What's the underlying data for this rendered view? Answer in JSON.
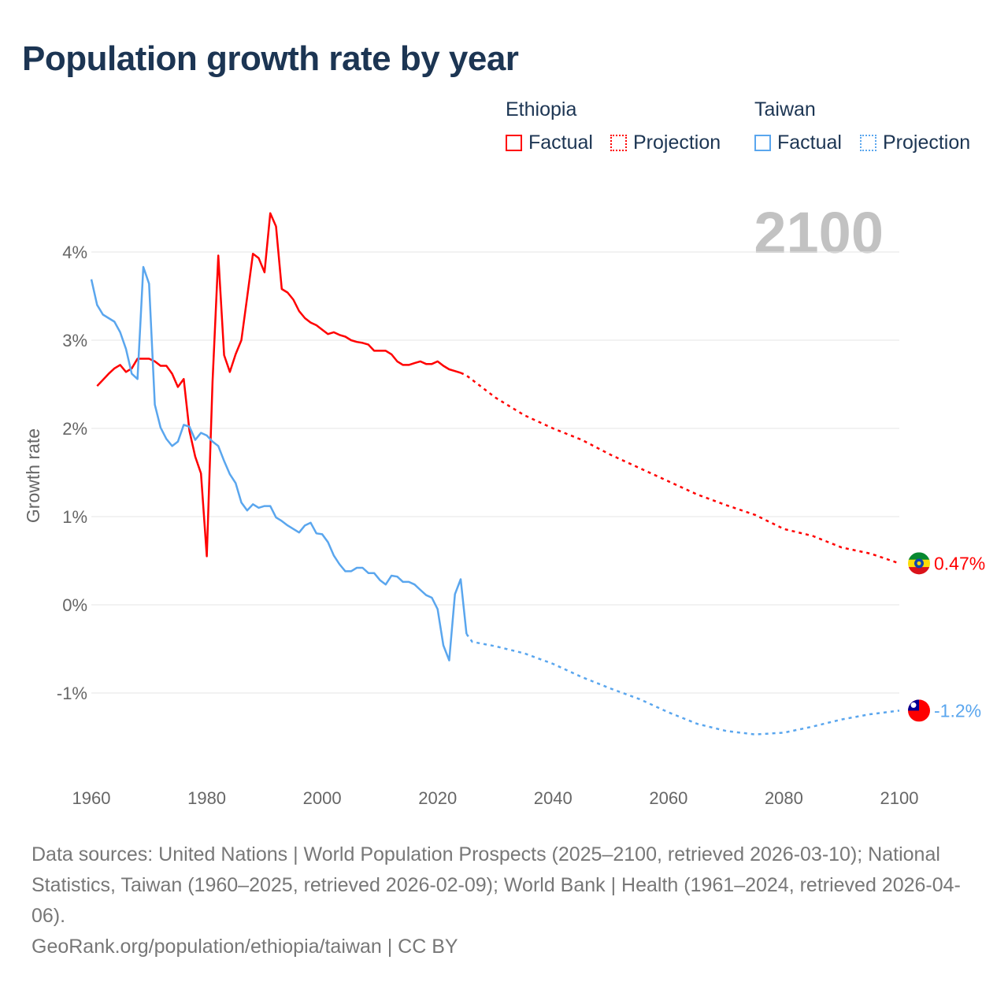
{
  "title": "Population growth rate by year",
  "legend": {
    "groups": [
      {
        "name": "Ethiopia",
        "factual": "Factual",
        "projection": "Projection",
        "color": "#ff0000"
      },
      {
        "name": "Taiwan",
        "factual": "Factual",
        "projection": "Projection",
        "color": "#5aa6ee"
      }
    ]
  },
  "year_watermark": "2100",
  "footer": {
    "sources": "Data sources: United Nations | World Population Prospects (2025–2100, retrieved 2026-03-10); National Statistics, Taiwan (1960–2025, retrieved 2026-02-09); World Bank | Health (1961–2024, retrieved 2026-04-06).",
    "credit": "GeoRank.org/population/ethiopia/taiwan | CC BY"
  },
  "chart_data": {
    "type": "line",
    "title": "Population growth rate by year",
    "xlabel": "",
    "ylabel": "Growth rate",
    "xlim": [
      1960,
      2100
    ],
    "ylim": [
      -2,
      4.6
    ],
    "x_ticks": [
      1960,
      1980,
      2000,
      2020,
      2040,
      2060,
      2080,
      2100
    ],
    "x_tick_labels": [
      "1960",
      "1980",
      "2000",
      "2020",
      "2040",
      "2060",
      "2080",
      "2100"
    ],
    "y_ticks": [
      -1,
      0,
      1,
      2,
      3,
      4
    ],
    "y_tick_labels": [
      "-1%",
      "0%",
      "1%",
      "2%",
      "3%",
      "4%"
    ],
    "grid": true,
    "legend_position": "top-right",
    "series": [
      {
        "name": "Ethiopia",
        "kind": "factual",
        "color": "#ff0000",
        "x": [
          1961,
          1962,
          1963,
          1964,
          1965,
          1966,
          1967,
          1968,
          1969,
          1970,
          1971,
          1972,
          1973,
          1974,
          1975,
          1976,
          1977,
          1978,
          1979,
          1980,
          1981,
          1982,
          1983,
          1984,
          1985,
          1986,
          1987,
          1988,
          1989,
          1990,
          1991,
          1992,
          1993,
          1994,
          1995,
          1996,
          1997,
          1998,
          1999,
          2000,
          2001,
          2002,
          2003,
          2004,
          2005,
          2006,
          2007,
          2008,
          2009,
          2010,
          2011,
          2012,
          2013,
          2014,
          2015,
          2016,
          2017,
          2018,
          2019,
          2020,
          2021,
          2022,
          2023,
          2024
        ],
        "y": [
          2.48,
          2.55,
          2.62,
          2.68,
          2.72,
          2.64,
          2.68,
          2.79,
          2.79,
          2.79,
          2.76,
          2.71,
          2.71,
          2.62,
          2.47,
          2.56,
          1.97,
          1.68,
          1.49,
          0.55,
          2.53,
          3.96,
          2.83,
          2.64,
          2.84,
          3.0,
          3.49,
          3.98,
          3.93,
          3.77,
          4.44,
          4.29,
          3.58,
          3.54,
          3.46,
          3.33,
          3.25,
          3.2,
          3.17,
          3.12,
          3.07,
          3.09,
          3.06,
          3.04,
          3.0,
          2.98,
          2.97,
          2.95,
          2.88,
          2.88,
          2.88,
          2.84,
          2.76,
          2.72,
          2.72,
          2.74,
          2.76,
          2.73,
          2.73,
          2.76,
          2.71,
          2.67,
          2.65,
          2.63
        ]
      },
      {
        "name": "Ethiopia",
        "kind": "projection",
        "color": "#ff0000",
        "x": [
          2024,
          2025,
          2030,
          2035,
          2040,
          2045,
          2050,
          2055,
          2060,
          2065,
          2070,
          2075,
          2080,
          2085,
          2090,
          2095,
          2100
        ],
        "y": [
          2.63,
          2.6,
          2.35,
          2.15,
          2.0,
          1.87,
          1.7,
          1.55,
          1.4,
          1.25,
          1.13,
          1.02,
          0.86,
          0.78,
          0.65,
          0.58,
          0.47
        ]
      },
      {
        "name": "Taiwan",
        "kind": "factual",
        "color": "#5aa6ee",
        "x": [
          1960,
          1961,
          1962,
          1963,
          1964,
          1965,
          1966,
          1967,
          1968,
          1969,
          1970,
          1971,
          1972,
          1973,
          1974,
          1975,
          1976,
          1977,
          1978,
          1979,
          1980,
          1981,
          1982,
          1983,
          1984,
          1985,
          1986,
          1987,
          1988,
          1989,
          1990,
          1991,
          1992,
          1993,
          1994,
          1995,
          1996,
          1997,
          1998,
          1999,
          2000,
          2001,
          2002,
          2003,
          2004,
          2005,
          2006,
          2007,
          2008,
          2009,
          2010,
          2011,
          2012,
          2013,
          2014,
          2015,
          2016,
          2017,
          2018,
          2019,
          2020,
          2021,
          2022,
          2023,
          2024,
          2025
        ],
        "y": [
          3.69,
          3.4,
          3.29,
          3.25,
          3.21,
          3.09,
          2.9,
          2.62,
          2.56,
          3.83,
          3.64,
          2.27,
          2.01,
          1.88,
          1.8,
          1.85,
          2.04,
          2.02,
          1.87,
          1.95,
          1.92,
          1.85,
          1.8,
          1.63,
          1.48,
          1.38,
          1.16,
          1.07,
          1.14,
          1.1,
          1.12,
          1.12,
          0.99,
          0.95,
          0.9,
          0.86,
          0.82,
          0.9,
          0.93,
          0.81,
          0.8,
          0.71,
          0.56,
          0.46,
          0.38,
          0.38,
          0.42,
          0.42,
          0.36,
          0.36,
          0.28,
          0.23,
          0.33,
          0.32,
          0.26,
          0.26,
          0.23,
          0.17,
          0.11,
          0.08,
          -0.05,
          -0.46,
          -0.63,
          0.12,
          0.29,
          -0.33
        ]
      },
      {
        "name": "Taiwan",
        "kind": "projection",
        "color": "#5aa6ee",
        "x": [
          2025,
          2026,
          2030,
          2035,
          2040,
          2045,
          2050,
          2055,
          2060,
          2065,
          2070,
          2075,
          2080,
          2085,
          2090,
          2095,
          2100
        ],
        "y": [
          -0.33,
          -0.42,
          -0.47,
          -0.55,
          -0.67,
          -0.82,
          -0.95,
          -1.07,
          -1.22,
          -1.35,
          -1.43,
          -1.47,
          -1.45,
          -1.38,
          -1.3,
          -1.24,
          -1.2
        ]
      }
    ],
    "end_labels": [
      {
        "name": "Ethiopia",
        "value": 0.47,
        "label": "0.47%",
        "color": "#ff0000",
        "flag": "ethiopia-flag"
      },
      {
        "name": "Taiwan",
        "value": -1.2,
        "label": "-1.2%",
        "color": "#5aa6ee",
        "flag": "taiwan-flag"
      }
    ]
  }
}
